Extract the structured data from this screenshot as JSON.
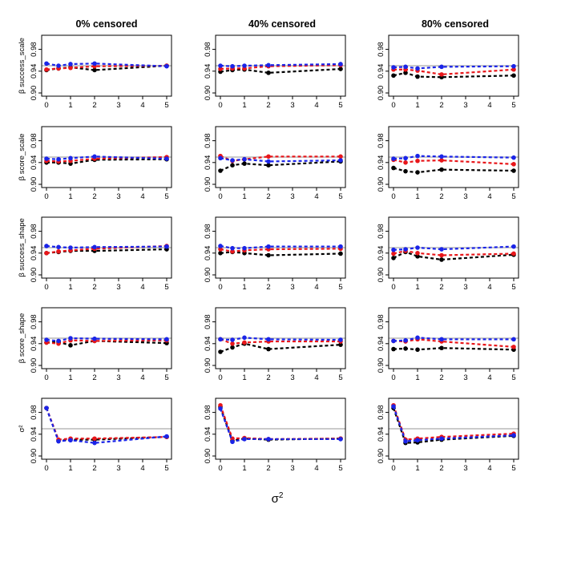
{
  "figure": {
    "column_titles": [
      "0% censored",
      "40% censored",
      "80% censored"
    ],
    "row_ylabels": [
      "β success_scale",
      "β score_scale",
      "β success_shape",
      "β score_shape",
      "σ²"
    ],
    "xlabel_base": "σ",
    "xlabel_sup": "2",
    "x_ticks": [
      0,
      1,
      2,
      3,
      4,
      5
    ],
    "y_ticks": [
      0.9,
      0.94,
      0.98
    ],
    "y_tick_labels": [
      "0.90",
      "0.94",
      "0.98"
    ],
    "reference_line": 0.95,
    "colors": {
      "black": "#000000",
      "red": "#e8161a",
      "blue": "#1a24e8",
      "reference": "#b8b8b8"
    }
  },
  "chart_data": {
    "type": "line",
    "layout": "grid 5 rows x 3 columns",
    "x": [
      0,
      0.5,
      1,
      2,
      5
    ],
    "xlim": [
      0,
      5
    ],
    "ylim": [
      0.9,
      1.0
    ],
    "xlabel": "σ²",
    "panels": [
      {
        "row": 0,
        "col": 0,
        "ylabel": "β success_scale",
        "title": "0% censored",
        "series": [
          {
            "color": "black",
            "values": [
              0.942,
              0.945,
              0.947,
              0.942,
              0.95
            ]
          },
          {
            "color": "red",
            "values": [
              0.943,
              0.945,
              0.946,
              0.949,
              0.95
            ]
          },
          {
            "color": "blue",
            "values": [
              0.954,
              0.95,
              0.953,
              0.954,
              0.949
            ]
          }
        ]
      },
      {
        "row": 0,
        "col": 1,
        "ylabel": "",
        "title": "40% censored",
        "series": [
          {
            "color": "black",
            "values": [
              0.939,
              0.942,
              0.943,
              0.937,
              0.944
            ]
          },
          {
            "color": "red",
            "values": [
              0.944,
              0.945,
              0.945,
              0.949,
              0.951
            ]
          },
          {
            "color": "blue",
            "values": [
              0.95,
              0.949,
              0.95,
              0.951,
              0.953
            ]
          }
        ]
      },
      {
        "row": 0,
        "col": 2,
        "ylabel": "",
        "title": "80% censored",
        "series": [
          {
            "color": "black",
            "values": [
              0.932,
              0.937,
              0.93,
              0.929,
              0.932
            ]
          },
          {
            "color": "red",
            "values": [
              0.943,
              0.943,
              0.941,
              0.934,
              0.943
            ]
          },
          {
            "color": "blue",
            "values": [
              0.947,
              0.948,
              0.945,
              0.948,
              0.949
            ]
          }
        ]
      },
      {
        "row": 1,
        "col": 0,
        "ylabel": "β score_scale",
        "title": "",
        "series": [
          {
            "color": "black",
            "values": [
              0.94,
              0.94,
              0.938,
              0.945,
              0.946
            ]
          },
          {
            "color": "red",
            "values": [
              0.943,
              0.942,
              0.943,
              0.947,
              0.95
            ]
          },
          {
            "color": "blue",
            "values": [
              0.947,
              0.946,
              0.948,
              0.951,
              0.947
            ]
          }
        ]
      },
      {
        "row": 1,
        "col": 1,
        "ylabel": "",
        "title": "",
        "series": [
          {
            "color": "black",
            "values": [
              0.925,
              0.935,
              0.938,
              0.935,
              0.942
            ]
          },
          {
            "color": "red",
            "values": [
              0.952,
              0.943,
              0.946,
              0.951,
              0.951
            ]
          },
          {
            "color": "blue",
            "values": [
              0.948,
              0.944,
              0.946,
              0.942,
              0.944
            ]
          }
        ]
      },
      {
        "row": 1,
        "col": 2,
        "ylabel": "",
        "title": "",
        "series": [
          {
            "color": "black",
            "values": [
              0.93,
              0.924,
              0.922,
              0.927,
              0.925
            ]
          },
          {
            "color": "red",
            "values": [
              0.945,
              0.94,
              0.943,
              0.944,
              0.937
            ]
          },
          {
            "color": "blue",
            "values": [
              0.947,
              0.948,
              0.952,
              0.951,
              0.949
            ]
          }
        ]
      },
      {
        "row": 2,
        "col": 0,
        "ylabel": "β success_shape",
        "title": "",
        "series": [
          {
            "color": "black",
            "values": [
              0.94,
              0.942,
              0.944,
              0.944,
              0.947
            ]
          },
          {
            "color": "red",
            "values": [
              0.94,
              0.943,
              0.945,
              0.948,
              0.953
            ]
          },
          {
            "color": "blue",
            "values": [
              0.953,
              0.951,
              0.95,
              0.951,
              0.952
            ]
          }
        ]
      },
      {
        "row": 2,
        "col": 1,
        "ylabel": "",
        "title": "",
        "series": [
          {
            "color": "black",
            "values": [
              0.94,
              0.942,
              0.94,
              0.936,
              0.939
            ]
          },
          {
            "color": "red",
            "values": [
              0.947,
              0.943,
              0.945,
              0.947,
              0.948
            ]
          },
          {
            "color": "blue",
            "values": [
              0.953,
              0.949,
              0.949,
              0.952,
              0.952
            ]
          }
        ]
      },
      {
        "row": 2,
        "col": 2,
        "ylabel": "",
        "title": "",
        "series": [
          {
            "color": "black",
            "values": [
              0.931,
              0.942,
              0.934,
              0.928,
              0.937
            ]
          },
          {
            "color": "red",
            "values": [
              0.939,
              0.944,
              0.94,
              0.936,
              0.939
            ]
          },
          {
            "color": "blue",
            "values": [
              0.946,
              0.947,
              0.95,
              0.947,
              0.952
            ]
          }
        ]
      },
      {
        "row": 3,
        "col": 0,
        "ylabel": "β score_shape",
        "title": "",
        "series": [
          {
            "color": "black",
            "values": [
              0.942,
              0.943,
              0.937,
              0.945,
              0.941
            ]
          },
          {
            "color": "red",
            "values": [
              0.942,
              0.94,
              0.946,
              0.945,
              0.946
            ]
          },
          {
            "color": "blue",
            "values": [
              0.947,
              0.945,
              0.95,
              0.949,
              0.948
            ]
          }
        ]
      },
      {
        "row": 3,
        "col": 1,
        "ylabel": "",
        "title": "",
        "series": [
          {
            "color": "black",
            "values": [
              0.925,
              0.933,
              0.94,
              0.93,
              0.938
            ]
          },
          {
            "color": "red",
            "values": [
              0.948,
              0.94,
              0.942,
              0.944,
              0.944
            ]
          },
          {
            "color": "blue",
            "values": [
              0.948,
              0.947,
              0.951,
              0.948,
              0.947
            ]
          }
        ]
      },
      {
        "row": 3,
        "col": 2,
        "ylabel": "",
        "title": "",
        "series": [
          {
            "color": "black",
            "values": [
              0.93,
              0.931,
              0.929,
              0.932,
              0.929
            ]
          },
          {
            "color": "red",
            "values": [
              0.945,
              0.944,
              0.948,
              0.944,
              0.934
            ]
          },
          {
            "color": "blue",
            "values": [
              0.945,
              0.946,
              0.951,
              0.948,
              0.948
            ]
          }
        ]
      },
      {
        "row": 4,
        "col": 0,
        "ylabel": "σ²",
        "title": "",
        "series": [
          {
            "color": "black",
            "values": [
              0.988,
              0.928,
              0.93,
              0.93,
              0.935
            ]
          },
          {
            "color": "red",
            "values": [
              0.988,
              0.93,
              0.932,
              0.932,
              0.935
            ]
          },
          {
            "color": "blue",
            "values": [
              0.988,
              0.927,
              0.929,
              0.924,
              0.936
            ]
          }
        ]
      },
      {
        "row": 4,
        "col": 1,
        "ylabel": "",
        "title": "",
        "series": [
          {
            "color": "black",
            "values": [
              0.99,
              0.928,
              0.932,
              0.93,
              0.932
            ]
          },
          {
            "color": "red",
            "values": [
              0.993,
              0.932,
              0.933,
              0.931,
              0.932
            ]
          },
          {
            "color": "blue",
            "values": [
              0.987,
              0.926,
              0.931,
              0.931,
              0.931
            ]
          }
        ]
      },
      {
        "row": 4,
        "col": 2,
        "ylabel": "",
        "title": "",
        "series": [
          {
            "color": "black",
            "values": [
              0.988,
              0.924,
              0.925,
              0.93,
              0.937
            ]
          },
          {
            "color": "red",
            "values": [
              0.993,
              0.93,
              0.932,
              0.935,
              0.941
            ]
          },
          {
            "color": "blue",
            "values": [
              0.991,
              0.927,
              0.929,
              0.932,
              0.938
            ]
          }
        ]
      }
    ]
  }
}
